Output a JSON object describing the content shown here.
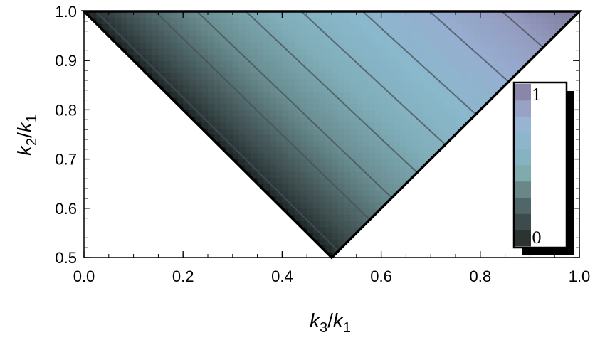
{
  "chart_data": {
    "type": "heatmap",
    "subtype": "triangular-contour",
    "xlabel": {
      "base": "k",
      "sub": "3",
      "slash": "/",
      "base2": "k",
      "sub2": "1"
    },
    "ylabel": {
      "base": "k",
      "sub": "2",
      "slash": "/",
      "base2": "k",
      "sub2": "1"
    },
    "xlim": [
      0.0,
      1.0
    ],
    "ylim": [
      0.5,
      1.0
    ],
    "xticks": [
      0.0,
      0.2,
      0.4,
      0.6,
      0.8,
      1.0
    ],
    "xtick_labels": [
      "0.0",
      "0.2",
      "0.4",
      "0.6",
      "0.8",
      "1.0"
    ],
    "yticks": [
      0.5,
      0.6,
      0.7,
      0.8,
      0.9,
      1.0
    ],
    "ytick_labels": [
      "0.5",
      "0.6",
      "0.7",
      "0.8",
      "0.9",
      "1.0"
    ],
    "domain_vertices": [
      [
        0.0,
        1.0
      ],
      [
        1.0,
        1.0
      ],
      [
        0.5,
        0.5
      ]
    ],
    "value_range": [
      0,
      1
    ],
    "contour_levels": [
      0.1,
      0.2,
      0.3,
      0.4,
      0.5,
      0.6,
      0.7,
      0.8,
      0.9
    ],
    "colorbar": {
      "min_label": "0",
      "max_label": "1",
      "colors": [
        "#2b3333",
        "#3d4b4c",
        "#506667",
        "#6a8687",
        "#7faaae",
        "#86b3c2",
        "#8db6cd",
        "#98b4d3",
        "#98a2c4",
        "#8a86a7"
      ]
    },
    "grid": false,
    "legend_position": "right"
  }
}
